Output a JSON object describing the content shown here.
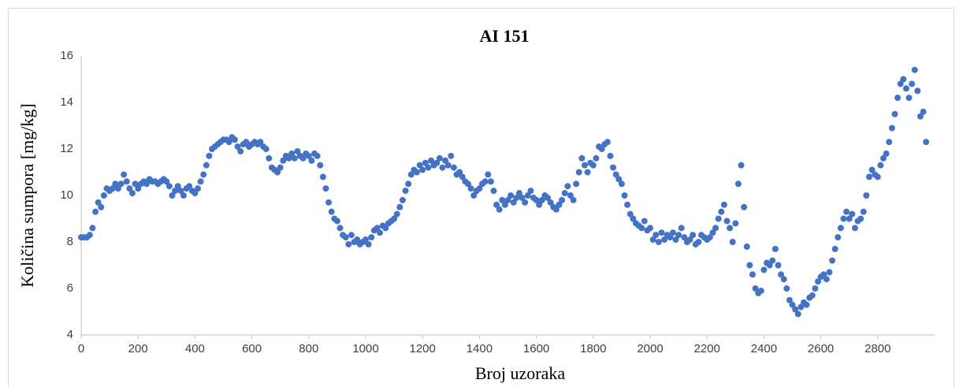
{
  "chart_data": {
    "type": "scatter",
    "title": "AI 151",
    "x_label": "Broj uzoraka",
    "y_label": "Količina sumpora [mg/kg]",
    "xlim": [
      0,
      3000
    ],
    "xticks": [
      0,
      200,
      400,
      600,
      800,
      1000,
      1200,
      1400,
      1600,
      1800,
      2000,
      2200,
      2400,
      2600,
      2800
    ],
    "ylim": [
      4,
      16
    ],
    "yticks": [
      4,
      6,
      8,
      10,
      12,
      14,
      16
    ],
    "grid": false,
    "series": [
      {
        "color": "#4472c4",
        "x": [
          0,
          10,
          20,
          30,
          40,
          50,
          60,
          70,
          80,
          90,
          100,
          110,
          120,
          130,
          140,
          150,
          160,
          170,
          180,
          190,
          200,
          210,
          220,
          230,
          240,
          250,
          260,
          270,
          280,
          290,
          300,
          310,
          320,
          330,
          340,
          350,
          360,
          370,
          380,
          390,
          400,
          410,
          420,
          430,
          440,
          450,
          460,
          470,
          480,
          490,
          500,
          510,
          520,
          530,
          540,
          550,
          560,
          570,
          580,
          590,
          600,
          610,
          620,
          630,
          640,
          650,
          660,
          670,
          680,
          690,
          700,
          710,
          720,
          730,
          740,
          750,
          760,
          770,
          780,
          790,
          800,
          810,
          820,
          830,
          840,
          850,
          860,
          870,
          880,
          890,
          900,
          910,
          920,
          930,
          940,
          950,
          960,
          970,
          980,
          990,
          1000,
          1010,
          1020,
          1030,
          1040,
          1050,
          1060,
          1070,
          1080,
          1090,
          1100,
          1110,
          1120,
          1130,
          1140,
          1150,
          1160,
          1170,
          1180,
          1190,
          1200,
          1210,
          1220,
          1230,
          1240,
          1250,
          1260,
          1270,
          1280,
          1290,
          1300,
          1310,
          1320,
          1330,
          1340,
          1350,
          1360,
          1370,
          1380,
          1390,
          1400,
          1410,
          1420,
          1430,
          1440,
          1450,
          1460,
          1470,
          1480,
          1490,
          1500,
          1510,
          1520,
          1530,
          1540,
          1550,
          1560,
          1570,
          1580,
          1590,
          1600,
          1610,
          1620,
          1630,
          1640,
          1650,
          1660,
          1670,
          1680,
          1690,
          1700,
          1710,
          1720,
          1730,
          1740,
          1750,
          1760,
          1770,
          1780,
          1790,
          1800,
          1810,
          1820,
          1830,
          1840,
          1850,
          1860,
          1870,
          1880,
          1890,
          1900,
          1910,
          1920,
          1930,
          1940,
          1950,
          1960,
          1970,
          1980,
          1990,
          2000,
          2010,
          2020,
          2030,
          2040,
          2050,
          2060,
          2070,
          2080,
          2090,
          2100,
          2110,
          2120,
          2130,
          2140,
          2150,
          2160,
          2170,
          2180,
          2190,
          2200,
          2210,
          2220,
          2230,
          2240,
          2250,
          2260,
          2270,
          2280,
          2290,
          2300,
          2310,
          2320,
          2330,
          2340,
          2350,
          2360,
          2370,
          2380,
          2390,
          2400,
          2410,
          2420,
          2430,
          2440,
          2450,
          2460,
          2470,
          2480,
          2490,
          2500,
          2510,
          2520,
          2530,
          2540,
          2550,
          2560,
          2570,
          2580,
          2590,
          2600,
          2610,
          2620,
          2630,
          2640,
          2650,
          2660,
          2670,
          2680,
          2690,
          2700,
          2710,
          2720,
          2730,
          2740,
          2750,
          2760,
          2770,
          2780,
          2790,
          2800,
          2810,
          2820,
          2830,
          2840,
          2850,
          2860,
          2870,
          2880,
          2890,
          2900,
          2910,
          2920,
          2930,
          2940,
          2950,
          2960,
          2970
        ],
        "values": [
          8.2,
          8.2,
          8.2,
          8.3,
          8.6,
          9.3,
          9.7,
          9.5,
          10.0,
          10.3,
          10.2,
          10.3,
          10.5,
          10.3,
          10.5,
          10.9,
          10.6,
          10.3,
          10.1,
          10.5,
          10.3,
          10.5,
          10.6,
          10.5,
          10.7,
          10.6,
          10.6,
          10.5,
          10.6,
          10.7,
          10.6,
          10.4,
          10.0,
          10.2,
          10.4,
          10.2,
          10.0,
          10.3,
          10.4,
          10.2,
          10.1,
          10.3,
          10.6,
          10.9,
          11.3,
          11.7,
          12.0,
          12.1,
          12.2,
          12.3,
          12.4,
          12.4,
          12.3,
          12.5,
          12.4,
          12.1,
          11.9,
          12.2,
          12.3,
          12.1,
          12.2,
          12.3,
          12.2,
          12.3,
          12.1,
          12.0,
          11.6,
          11.2,
          11.1,
          11.0,
          11.2,
          11.5,
          11.7,
          11.6,
          11.8,
          11.6,
          11.9,
          11.7,
          11.6,
          11.8,
          11.7,
          11.5,
          11.8,
          11.7,
          11.3,
          10.8,
          10.3,
          9.7,
          9.3,
          9.0,
          8.9,
          8.6,
          8.3,
          8.2,
          7.9,
          8.3,
          8.0,
          8.1,
          7.9,
          8.0,
          8.1,
          7.9,
          8.2,
          8.5,
          8.6,
          8.4,
          8.7,
          8.6,
          8.8,
          8.9,
          9.0,
          9.2,
          9.5,
          9.8,
          10.2,
          10.5,
          10.9,
          11.1,
          11.0,
          11.3,
          11.1,
          11.4,
          11.2,
          11.5,
          11.3,
          11.4,
          11.6,
          11.2,
          11.5,
          11.3,
          11.7,
          11.2,
          10.9,
          11.0,
          10.8,
          10.6,
          10.5,
          10.3,
          10.0,
          10.2,
          10.3,
          10.5,
          10.6,
          10.9,
          10.6,
          10.2,
          9.6,
          9.4,
          9.8,
          9.6,
          9.8,
          10.0,
          9.7,
          9.9,
          10.1,
          9.9,
          9.7,
          10.0,
          10.2,
          9.9,
          9.8,
          9.6,
          9.8,
          10.0,
          9.9,
          9.7,
          9.5,
          9.4,
          9.6,
          9.8,
          10.1,
          10.4,
          10.0,
          9.8,
          10.5,
          11.0,
          11.6,
          11.3,
          11.0,
          11.4,
          11.3,
          11.6,
          12.1,
          12.0,
          12.2,
          12.3,
          11.7,
          11.2,
          10.9,
          10.7,
          10.5,
          10.0,
          9.6,
          9.2,
          9.0,
          8.8,
          8.7,
          8.6,
          8.9,
          8.5,
          8.6,
          8.1,
          8.3,
          8.0,
          8.4,
          8.1,
          8.3,
          8.2,
          8.4,
          8.1,
          8.3,
          8.6,
          8.2,
          8.0,
          8.1,
          8.3,
          7.9,
          8.0,
          8.3,
          8.2,
          8.1,
          8.2,
          8.4,
          8.6,
          9.0,
          9.3,
          9.6,
          8.9,
          8.6,
          8.0,
          8.8,
          10.5,
          11.3,
          9.5,
          7.8,
          7.0,
          6.6,
          6.0,
          5.8,
          5.9,
          6.8,
          7.1,
          7.0,
          7.2,
          7.7,
          7.0,
          6.6,
          6.4,
          6.0,
          5.5,
          5.3,
          5.1,
          4.9,
          5.2,
          5.4,
          5.3,
          5.6,
          5.7,
          6.0,
          6.3,
          6.5,
          6.6,
          6.4,
          6.7,
          7.2,
          7.7,
          8.2,
          8.6,
          9.0,
          9.3,
          9.0,
          9.2,
          8.6,
          8.9,
          9.0,
          9.3,
          10.0,
          10.8,
          11.1,
          10.9,
          10.8,
          11.3,
          11.6,
          11.8,
          12.3,
          12.9,
          13.5,
          14.2,
          14.8,
          15.0,
          14.6,
          14.2,
          14.8,
          15.4,
          14.5,
          13.4,
          13.6,
          12.3
        ]
      }
    ]
  }
}
